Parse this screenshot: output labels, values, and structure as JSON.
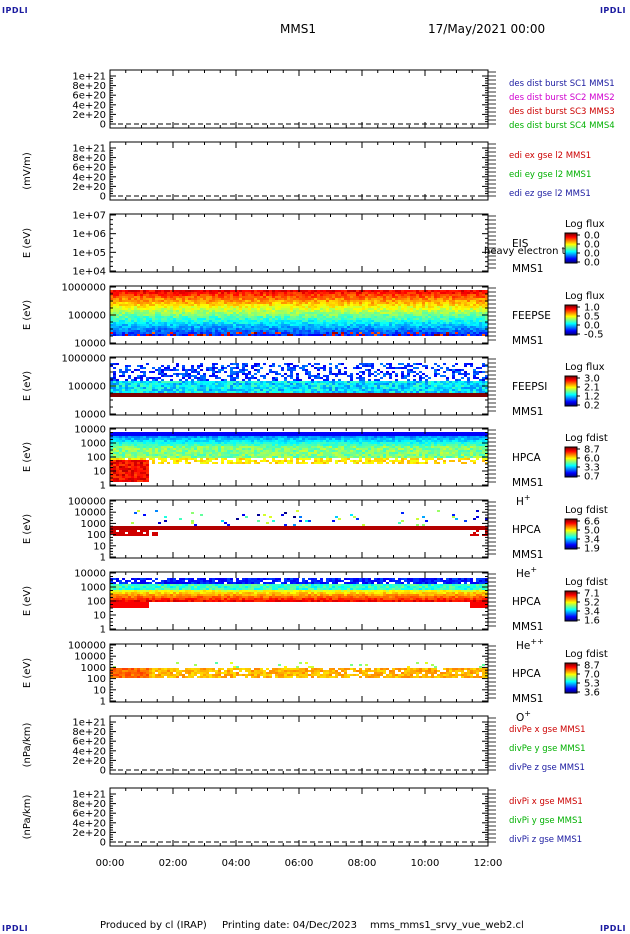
{
  "header": {
    "spacecraft": "MMS1",
    "date": "17/May/2021 00:00",
    "corner_left_top": "IPDLI",
    "corner_right_top": "IPDLI",
    "corner_left_bottom": "IPDLI",
    "corner_right_bottom": "IPDLI"
  },
  "footer": {
    "produced_by": "Produced by cl (IRAP)",
    "printing_date": "Printing date: 04/Dec/2023",
    "file": "mms_mms1_srvy_vue_web2.cl"
  },
  "chart_data": {
    "type": "multi-panel",
    "x_ticks": [
      "00:00",
      "02:00",
      "04:00",
      "06:00",
      "08:00",
      "10:00",
      "12:00"
    ],
    "panels": [
      {
        "kind": "line",
        "ylabel": "",
        "yticks": [
          "1e+21",
          "8e+20",
          "6e+20",
          "4e+20",
          "2e+20",
          "0"
        ],
        "legend": [
          {
            "text": "des dist burst SC1 MMS1",
            "color": "#1a1aa0"
          },
          {
            "text": "des dist burst SC2 MMS2",
            "color": "#d000d0"
          },
          {
            "text": "des dist burst SC3 MMS3",
            "color": "#cc0000"
          },
          {
            "text": "des dist burst SC4 MMS4",
            "color": "#00b000"
          }
        ]
      },
      {
        "kind": "line",
        "ylabel": "(mV/m)",
        "yticks": [
          "1e+21",
          "8e+20",
          "6e+20",
          "4e+20",
          "2e+20",
          "0"
        ],
        "legend": [
          {
            "text": "edi ex gse l2 MMS1",
            "color": "#cc0000"
          },
          {
            "text": "edi ey gse l2 MMS1",
            "color": "#00b000"
          },
          {
            "text": "edi ez gse l2 MMS1",
            "color": "#1a1aa0"
          }
        ]
      },
      {
        "kind": "spectrogram",
        "ylabel": "E (eV)",
        "yticks": [
          "1e+07",
          "1e+06",
          "1e+05",
          "1e+04"
        ],
        "instrument": "EIS",
        "sc": "MMS1",
        "overlap_text": "heavy electron to",
        "species": "",
        "cbar_title": "Log flux",
        "cbar_ticks": [
          "0.0",
          "0.0",
          "0.0",
          "0.0"
        ],
        "fill": "empty"
      },
      {
        "kind": "spectrogram",
        "ylabel": "E (eV)",
        "yticks": [
          "1000000",
          "100000",
          "10000"
        ],
        "instrument": "FEEPSE",
        "sc": "MMS1",
        "species": "",
        "cbar_title": "Log flux",
        "cbar_ticks": [
          "1.0",
          "0.5",
          "0.0",
          "-0.5"
        ],
        "fill": "feepse"
      },
      {
        "kind": "spectrogram",
        "ylabel": "E (eV)",
        "yticks": [
          "1000000",
          "100000",
          "10000"
        ],
        "instrument": "FEEPSI",
        "sc": "MMS1",
        "species": "",
        "cbar_title": "Log flux",
        "cbar_ticks": [
          "3.0",
          "2.1",
          "1.2",
          "0.2"
        ],
        "fill": "feepsi"
      },
      {
        "kind": "spectrogram",
        "ylabel": "E (eV)",
        "yticks": [
          "10000",
          "1000",
          "100",
          "10",
          "1"
        ],
        "instrument": "HPCA",
        "sc": "MMS1",
        "species": "H+",
        "cbar_title": "Log fdist",
        "cbar_ticks": [
          "8.7",
          "6.0",
          "3.3",
          "0.7"
        ],
        "fill": "hplus"
      },
      {
        "kind": "spectrogram",
        "ylabel": "E (eV)",
        "yticks": [
          "100000",
          "10000",
          "1000",
          "100",
          "10",
          "1"
        ],
        "instrument": "HPCA",
        "sc": "MMS1",
        "species": "He+",
        "cbar_title": "Log fdist",
        "cbar_ticks": [
          "6.6",
          "5.0",
          "3.4",
          "1.9"
        ],
        "fill": "heplus"
      },
      {
        "kind": "spectrogram",
        "ylabel": "E (eV)",
        "yticks": [
          "10000",
          "1000",
          "100",
          "10",
          "1"
        ],
        "instrument": "HPCA",
        "sc": "MMS1",
        "species": "He++",
        "cbar_title": "Log fdist",
        "cbar_ticks": [
          "7.1",
          "5.2",
          "3.4",
          "1.6"
        ],
        "fill": "hepp"
      },
      {
        "kind": "spectrogram",
        "ylabel": "E (eV)",
        "yticks": [
          "100000",
          "10000",
          "1000",
          "100",
          "10",
          "1"
        ],
        "instrument": "HPCA",
        "sc": "MMS1",
        "species": "O+",
        "cbar_title": "Log fdist",
        "cbar_ticks": [
          "8.7",
          "7.0",
          "5.3",
          "3.6"
        ],
        "fill": "oplus"
      },
      {
        "kind": "line",
        "ylabel": "(nPa/km)",
        "yticks": [
          "1e+21",
          "8e+20",
          "6e+20",
          "4e+20",
          "2e+20",
          "0"
        ],
        "legend": [
          {
            "text": "divPe x gse MMS1",
            "color": "#cc0000"
          },
          {
            "text": "divPe y gse MMS1",
            "color": "#00b000"
          },
          {
            "text": "divPe z gse MMS1",
            "color": "#1a1aa0"
          }
        ]
      },
      {
        "kind": "line",
        "ylabel": "(nPa/km)",
        "yticks": [
          "1e+21",
          "8e+20",
          "6e+20",
          "4e+20",
          "2e+20",
          "0"
        ],
        "legend": [
          {
            "text": "divPi x gse MMS1",
            "color": "#cc0000"
          },
          {
            "text": "divPi y gse MMS1",
            "color": "#00b000"
          },
          {
            "text": "divPi z gse MMS1",
            "color": "#1a1aa0"
          }
        ]
      }
    ]
  }
}
